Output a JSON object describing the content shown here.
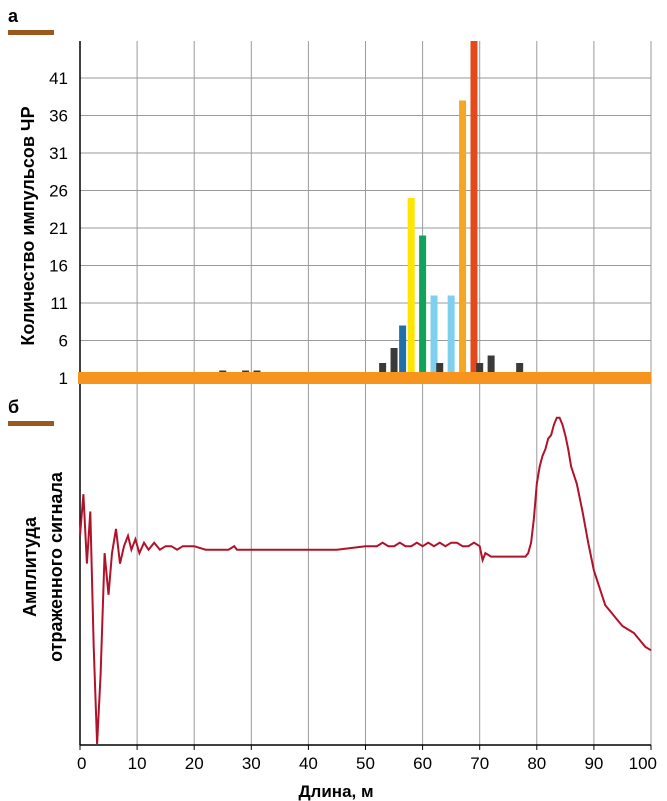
{
  "colors": {
    "accent": "#9a5a1e",
    "baseline": "#f7941d",
    "grid": "#9a9a9a",
    "signal": "#b0122a"
  },
  "chart_data": [
    {
      "type": "bar",
      "panel_label": "а",
      "ylabel": "Количество импульсов ЧР",
      "xlim": [
        0,
        100
      ],
      "yticks": [
        1,
        6,
        11,
        16,
        21,
        26,
        31,
        36,
        41
      ],
      "xticks": [
        0,
        10,
        20,
        30,
        40,
        50,
        60,
        70,
        80,
        90,
        100
      ],
      "ylim": [
        0,
        46
      ],
      "grid": true,
      "baseline_value": 1,
      "bars": [
        {
          "x": 25,
          "value": 2,
          "color": "#3a3a3a"
        },
        {
          "x": 29,
          "value": 2,
          "color": "#3a3a3a"
        },
        {
          "x": 31,
          "value": 2,
          "color": "#3a3a3a"
        },
        {
          "x": 53,
          "value": 3,
          "color": "#3a3a3a"
        },
        {
          "x": 55,
          "value": 5,
          "color": "#3a3a3a"
        },
        {
          "x": 56.5,
          "value": 8,
          "color": "#1f6fa8"
        },
        {
          "x": 58,
          "value": 25,
          "color": "#ffe500"
        },
        {
          "x": 60,
          "value": 20,
          "color": "#12a35a"
        },
        {
          "x": 62,
          "value": 12,
          "color": "#7fd0ee"
        },
        {
          "x": 63,
          "value": 3,
          "color": "#3a3a3a"
        },
        {
          "x": 65,
          "value": 12,
          "color": "#7fd0ee"
        },
        {
          "x": 67,
          "value": 38,
          "color": "#f5a623"
        },
        {
          "x": 69,
          "value": 46,
          "color": "#e3491a"
        },
        {
          "x": 70,
          "value": 3,
          "color": "#3a3a3a"
        },
        {
          "x": 72,
          "value": 4,
          "color": "#3a3a3a"
        },
        {
          "x": 77,
          "value": 3,
          "color": "#3a3a3a"
        }
      ]
    },
    {
      "type": "line",
      "panel_label": "б",
      "ylabel_lines": [
        "Амплитуда",
        "отраженного сигнала"
      ],
      "xlabel": "Длина, м",
      "xlim": [
        0,
        100
      ],
      "ylim": [
        0,
        100
      ],
      "xticks": [
        0,
        10,
        20,
        30,
        40,
        50,
        60,
        70,
        80,
        90,
        100
      ],
      "grid": true,
      "series": [
        {
          "x": [
            0,
            0.6,
            1.2,
            1.8,
            2.4,
            3.0,
            3.6,
            4.3,
            5.0,
            5.6,
            6.3,
            7.0,
            7.7,
            8.4,
            9.0,
            9.7,
            10.4,
            11.2,
            12.0,
            13.0,
            14.0,
            15.0,
            16.0,
            17.0,
            18.0,
            20.0,
            22.0,
            24.0,
            26.0,
            27.0,
            27.5,
            28.0,
            30.0,
            35.0,
            40.0,
            45.0,
            50.0,
            52.0,
            53.0,
            54.0,
            55.0,
            56.0,
            57.0,
            58.0,
            59.0,
            60.0,
            61.0,
            62.0,
            63.0,
            64.0,
            65.0,
            66.0,
            67.0,
            68.0,
            69.0,
            70.0,
            70.5,
            71.0,
            72.0,
            75.0,
            78.0,
            78.5,
            79.0,
            79.5,
            80.0,
            80.5,
            81.0,
            81.5,
            82.0,
            82.5,
            83.0,
            83.5,
            84.0,
            84.5,
            85.0,
            85.5,
            86.0,
            87.0,
            88.0,
            89.0,
            90.0,
            91.0,
            92.0,
            93.0,
            94.0,
            95.0,
            96.0,
            97.0,
            98.0,
            99.0,
            100.0
          ],
          "y": [
            60,
            72,
            52,
            67,
            28,
            0,
            20,
            55,
            43,
            55,
            62,
            52,
            57,
            60,
            56,
            59,
            55,
            58,
            56,
            58,
            56,
            57,
            57,
            56,
            57,
            57,
            56,
            56,
            56,
            57,
            56,
            56,
            56,
            56,
            56,
            56,
            57,
            57,
            58,
            57,
            57,
            58,
            57,
            57,
            58,
            57,
            58,
            57,
            58,
            57,
            58,
            58,
            57,
            57,
            58,
            57,
            53,
            55,
            54,
            54,
            54,
            55,
            58,
            65,
            75,
            80,
            83,
            85,
            88,
            89,
            92,
            94,
            94,
            92,
            89,
            85,
            80,
            75,
            67,
            58,
            50,
            45,
            40,
            38,
            36,
            34,
            33,
            32,
            30,
            28,
            27
          ]
        }
      ]
    }
  ]
}
